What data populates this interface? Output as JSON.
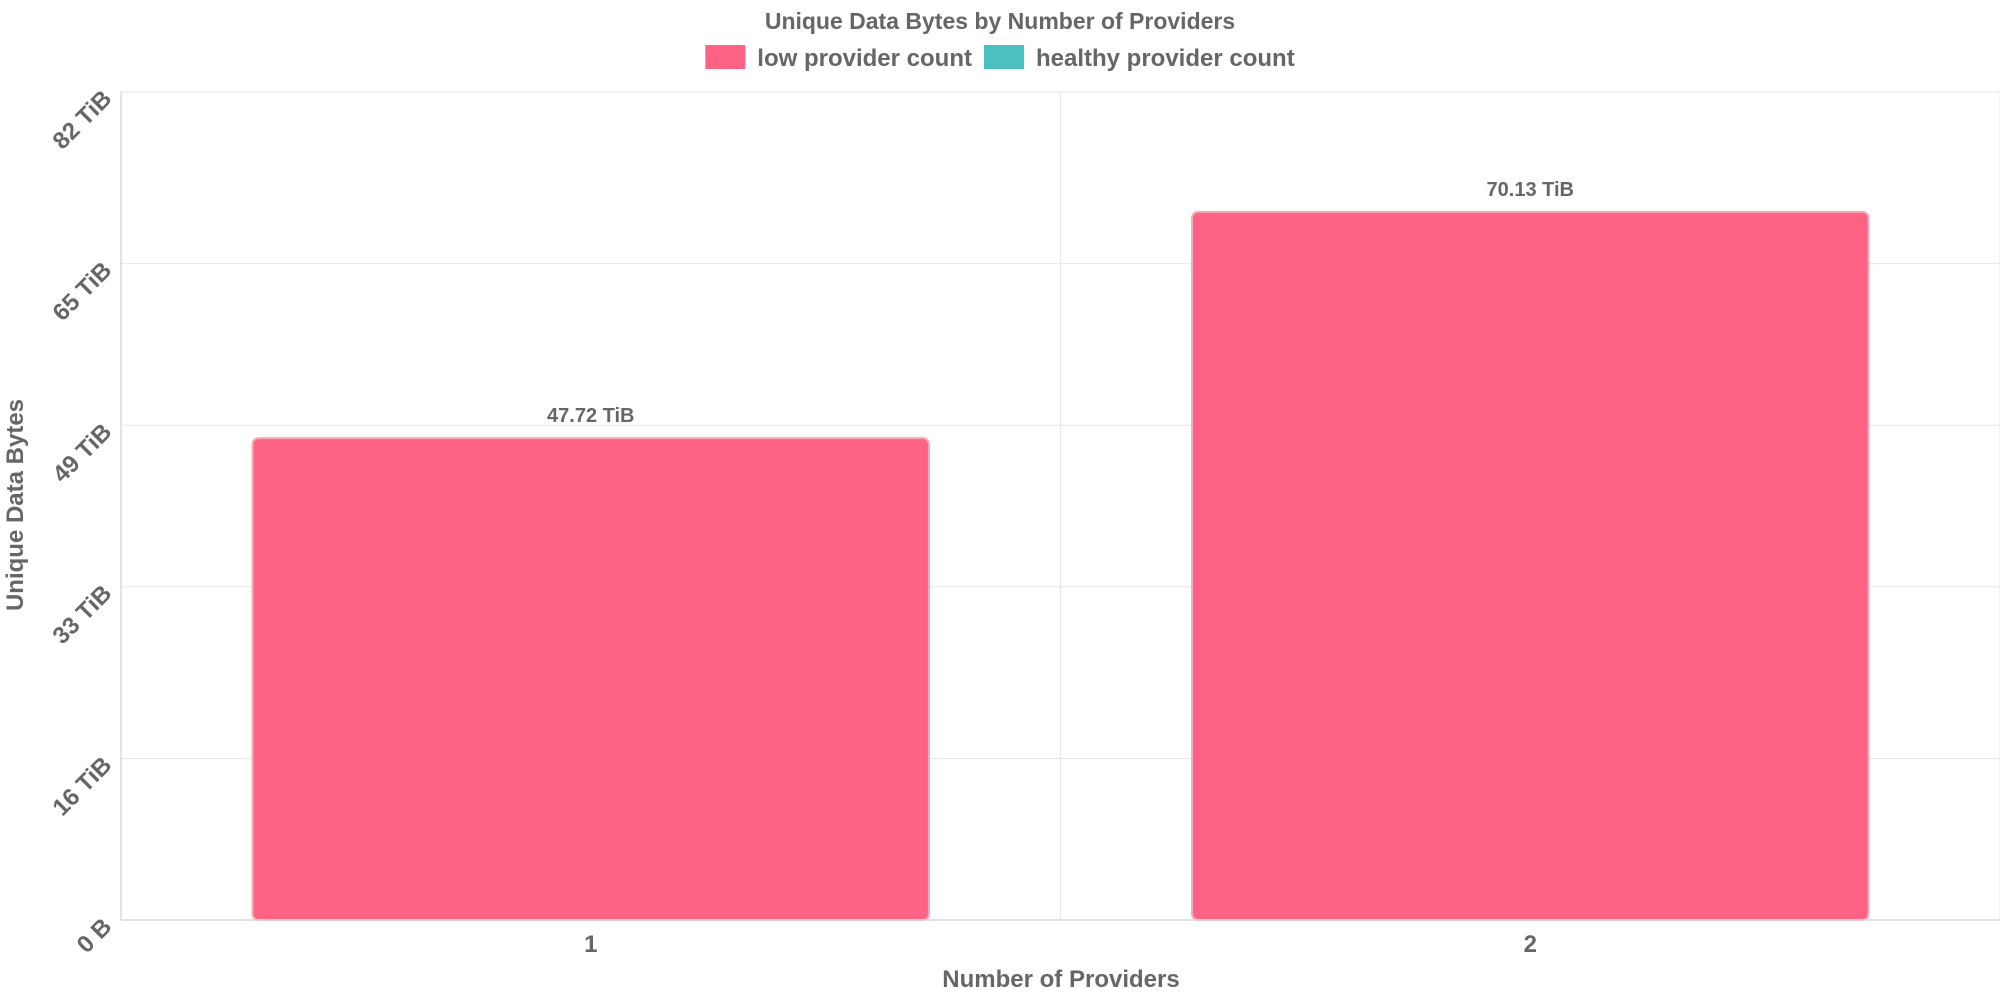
{
  "chart_data": {
    "type": "bar",
    "title": "Unique Data Bytes by Number of Providers",
    "xlabel": "Number of Providers",
    "ylabel": "Unique Data Bytes",
    "categories": [
      "1",
      "2"
    ],
    "series": [
      {
        "name": "low provider count",
        "color": "#ff6384",
        "values": [
          47.72,
          70.13
        ],
        "value_labels": [
          "47.72 TiB",
          "70.13 TiB"
        ]
      },
      {
        "name": "healthy provider count",
        "color": "#4bc0c0",
        "values": [
          null,
          null
        ]
      }
    ],
    "y_unit": "TiB",
    "ylim": [
      0,
      82
    ],
    "y_ticks": [
      0,
      16,
      33,
      49,
      65,
      82
    ],
    "y_tick_labels": [
      "0 B",
      "16 TiB",
      "33 TiB",
      "49 TiB",
      "65 TiB",
      "82 TiB"
    ],
    "grid": true,
    "legend_position": "top"
  }
}
